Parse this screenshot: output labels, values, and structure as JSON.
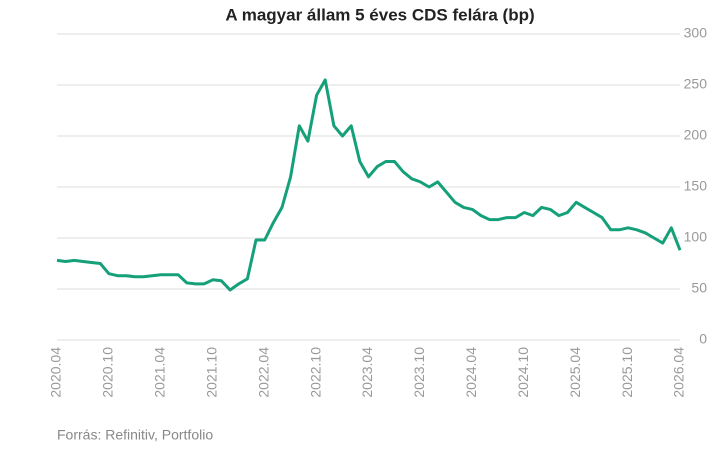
{
  "chart_data": {
    "type": "line",
    "title": "A magyar állam 5 éves CDS felára (bp)",
    "source": "Forrás: Refinitiv, Portfolio",
    "x": [
      "2020.04",
      "2020.05",
      "2020.06",
      "2020.07",
      "2020.08",
      "2020.09",
      "2020.10",
      "2020.11",
      "2020.12",
      "2021.01",
      "2021.02",
      "2021.03",
      "2021.04",
      "2021.05",
      "2021.06",
      "2021.07",
      "2021.08",
      "2021.09",
      "2021.10",
      "2021.11",
      "2021.12",
      "2022.01",
      "2022.02",
      "2022.03",
      "2022.04",
      "2022.05",
      "2022.06",
      "2022.07",
      "2022.08",
      "2022.09",
      "2022.10",
      "2022.11",
      "2022.12",
      "2023.01",
      "2023.02",
      "2023.03",
      "2023.04",
      "2023.05",
      "2023.06",
      "2023.07",
      "2023.08",
      "2023.09",
      "2023.10",
      "2023.11",
      "2023.12",
      "2024.01",
      "2024.02",
      "2024.03",
      "2024.04",
      "2024.05",
      "2024.06",
      "2024.07",
      "2024.08",
      "2024.09",
      "2024.10",
      "2024.11",
      "2024.12",
      "2025.01",
      "2025.02",
      "2025.03",
      "2025.04",
      "2025.05",
      "2025.06",
      "2025.07",
      "2025.08",
      "2025.09",
      "2025.10",
      "2025.11",
      "2025.12",
      "2026.01",
      "2026.02",
      "2026.03",
      "2026.04"
    ],
    "series": [
      {
        "name": "CDS",
        "color": "#15a07a",
        "values": [
          78,
          77,
          78,
          77,
          76,
          75,
          65,
          63,
          63,
          62,
          62,
          63,
          64,
          64,
          64,
          56,
          55,
          55,
          59,
          58,
          49,
          55,
          60,
          98,
          98,
          115,
          130,
          160,
          210,
          195,
          240,
          255,
          210,
          200,
          210,
          175,
          160,
          170,
          175,
          175,
          165,
          158,
          155,
          150,
          155,
          145,
          135,
          130,
          128,
          122,
          118,
          118,
          120,
          120,
          125,
          122,
          130,
          128,
          122,
          125,
          135,
          130,
          125,
          120,
          108,
          108,
          110,
          108,
          105,
          100,
          95,
          110,
          88
        ]
      }
    ],
    "xticks": [
      "2020.04",
      "2020.10",
      "2021.04",
      "2021.10",
      "2022.04",
      "2022.10",
      "2023.04",
      "2023.10",
      "2024.04",
      "2024.10",
      "2025.04",
      "2025.10",
      "2026.04"
    ],
    "ylim": [
      0,
      300
    ],
    "yticks": [
      0,
      50,
      100,
      150,
      200,
      250,
      300
    ],
    "grid": true
  }
}
